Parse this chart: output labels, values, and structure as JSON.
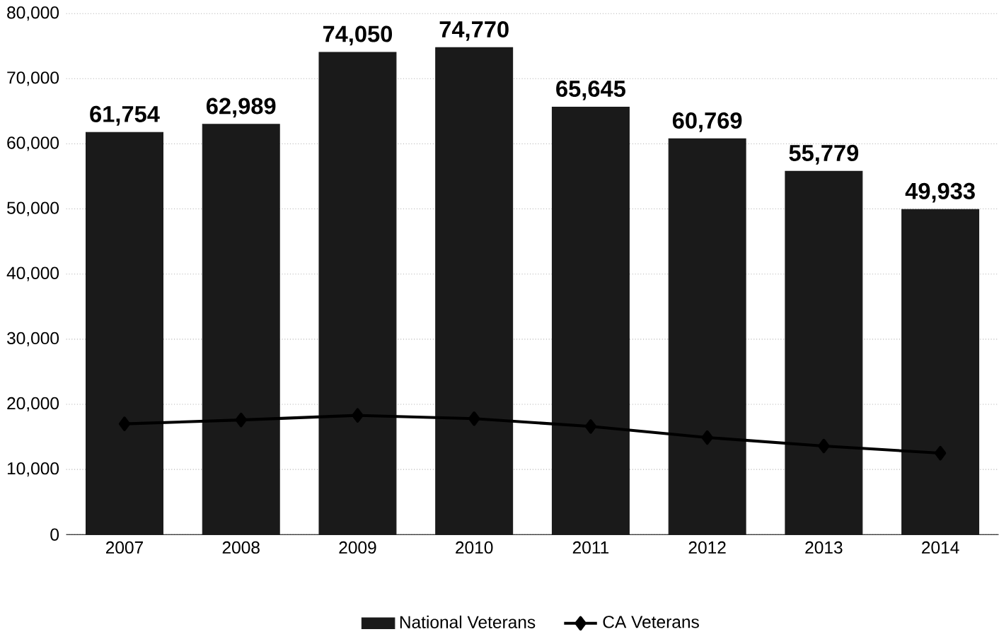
{
  "chart_data": {
    "type": "bar",
    "categories": [
      "2007",
      "2008",
      "2009",
      "2010",
      "2011",
      "2012",
      "2013",
      "2014"
    ],
    "series": [
      {
        "name": "National Veterans",
        "color": "#1a1a1a",
        "values": [
          61754,
          62989,
          74050,
          74770,
          65645,
          60769,
          55779,
          49933
        ],
        "value_labels": [
          "61,754",
          "62,989",
          "74,050",
          "74,770",
          "65,645",
          "60,769",
          "55,779",
          "49,933"
        ]
      },
      {
        "name": "CA Veterans",
        "type": "line",
        "color": "#000000",
        "marker": "diamond",
        "values": [
          17000,
          17600,
          18300,
          17800,
          16600,
          14900,
          13600,
          12500
        ]
      }
    ],
    "ylim": [
      0,
      80000
    ],
    "yticks": [
      {
        "value": 0,
        "label": "0"
      },
      {
        "value": 10000,
        "label": "10,000"
      },
      {
        "value": 20000,
        "label": "20,000"
      },
      {
        "value": 30000,
        "label": "30,000"
      },
      {
        "value": 40000,
        "label": "40,000"
      },
      {
        "value": 50000,
        "label": "50,000"
      },
      {
        "value": 60000,
        "label": "60,000"
      },
      {
        "value": 70000,
        "label": "70,000"
      },
      {
        "value": 80000,
        "label": "80,000"
      }
    ],
    "grid": "y",
    "legend": "bottom"
  }
}
